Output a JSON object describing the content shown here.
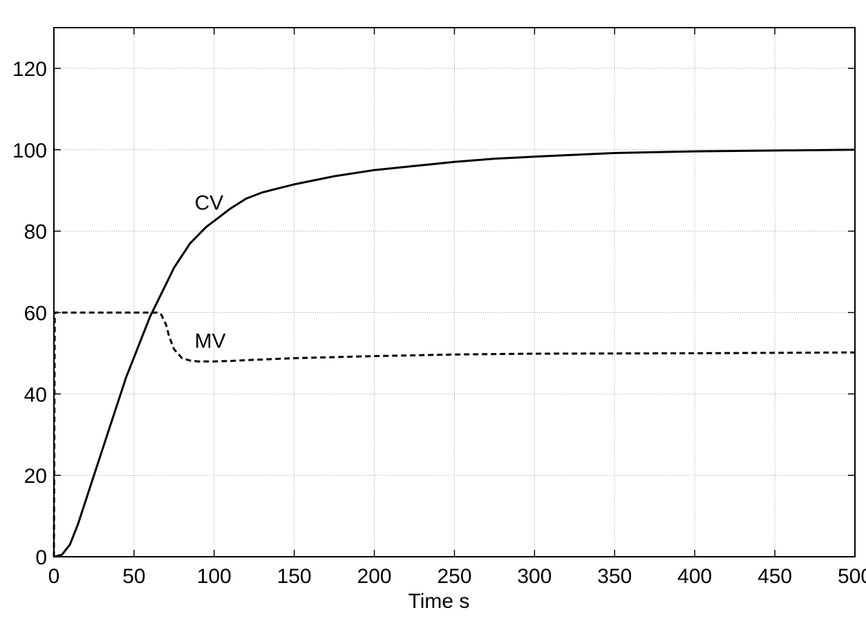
{
  "chart_data": {
    "type": "line",
    "title": "",
    "xlabel": "Time s",
    "ylabel": "",
    "xlim": [
      0,
      500
    ],
    "ylim": [
      0,
      130
    ],
    "grid": true,
    "x_ticks": [
      0,
      50,
      100,
      150,
      200,
      250,
      300,
      350,
      400,
      450,
      500
    ],
    "x_tick_labels": [
      "0",
      "50",
      "100",
      "150",
      "200",
      "250",
      "300",
      "350",
      "400",
      "450",
      "500"
    ],
    "y_ticks": [
      0,
      20,
      40,
      60,
      80,
      100,
      120
    ],
    "y_tick_labels": [
      "0",
      "20",
      "40",
      "60",
      "80",
      "100",
      "120"
    ],
    "series": [
      {
        "name": "CV",
        "line_style": "solid",
        "color": "#000000",
        "x": [
          0,
          5,
          10,
          15,
          20,
          25,
          30,
          35,
          40,
          45,
          50,
          55,
          60,
          65,
          70,
          75,
          80,
          85,
          90,
          95,
          100,
          110,
          120,
          130,
          140,
          150,
          175,
          200,
          225,
          250,
          275,
          300,
          350,
          400,
          450,
          500
        ],
        "y": [
          0,
          0.5,
          3,
          8,
          14,
          20,
          26,
          32,
          38,
          44,
          49,
          54,
          59,
          63,
          67,
          71,
          74,
          77,
          79,
          81,
          82.5,
          85.5,
          88,
          89.5,
          90.5,
          91.5,
          93.5,
          95,
          96,
          97,
          97.8,
          98.3,
          99.2,
          99.6,
          99.8,
          100
        ]
      },
      {
        "name": "MV",
        "line_style": "dashed",
        "color": "#000000",
        "x": [
          0,
          0.5,
          1,
          10,
          30,
          50,
          60,
          65,
          67,
          70,
          72,
          75,
          80,
          85,
          90,
          100,
          110,
          120,
          150,
          200,
          250,
          300,
          400,
          500
        ],
        "y": [
          0,
          60,
          60,
          60,
          60,
          60,
          60,
          60,
          59.5,
          57,
          54,
          51,
          48.8,
          48.2,
          48,
          48,
          48.1,
          48.3,
          48.8,
          49.3,
          49.7,
          49.9,
          50,
          50.2
        ]
      }
    ],
    "annotations": [
      {
        "text": "CV",
        "x": 90,
        "y": 87
      },
      {
        "text": "MV",
        "x": 90,
        "y": 53
      }
    ]
  }
}
